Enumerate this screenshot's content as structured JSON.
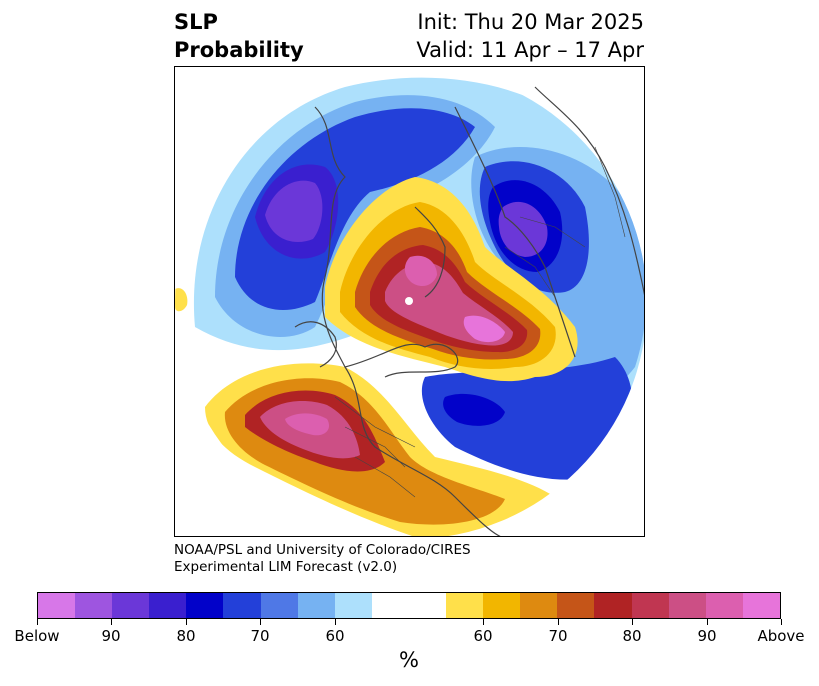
{
  "title": {
    "left_line1": "SLP",
    "left_line2": "Probability",
    "right_line1": "Init: Thu 20 Mar 2025",
    "right_line2": "Valid: 11 Apr – 17 Apr"
  },
  "credit": {
    "line1": "NOAA/PSL and University of Colorado/CIRES",
    "line2": "Experimental LIM Forecast (v2.0)"
  },
  "colorbar": {
    "colors": [
      "#d777e8",
      "#9e55e0",
      "#6b37d8",
      "#3a1fcf",
      "#0202c9",
      "#2340d9",
      "#4f78e6",
      "#76b2f2",
      "#ade0fc",
      "#ffffff",
      "#ffffff",
      "#ffe04a",
      "#f2b600",
      "#de8a10",
      "#c55518",
      "#b02324",
      "#c03651",
      "#cc4f85",
      "#dc5faf",
      "#e774da"
    ],
    "tick_labels": [
      "Below",
      "90",
      "80",
      "70",
      "60",
      "60",
      "70",
      "80",
      "90",
      "Above"
    ],
    "unit": "%"
  },
  "map": {
    "projection": "north-polar-stereographic",
    "below_color": "#2340d9",
    "above_color": "#b02324"
  }
}
